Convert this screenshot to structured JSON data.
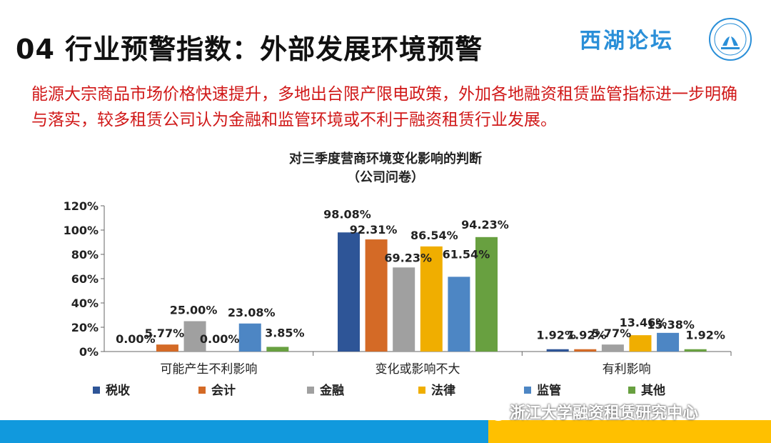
{
  "slide": {
    "title": "04 行业预警指数：外部发展环境预警",
    "brand": "西湖论坛",
    "intro": "能源大宗商品市场价格快速提升，多地出台限产限电政策，外加各地融资租赁监管指标进一步明确与落实，较多租赁公司认为金融和监管环境或不利于融资租赁行业发展。",
    "watermark": "浙江大学融资租赁研究中心"
  },
  "colors": {
    "intro_text": "#d01818",
    "brand": "#2a8fd8",
    "footer_blue": "#1199dd",
    "footer_yellow": "#ffc000"
  },
  "chart_data": {
    "type": "bar",
    "title": "对三季度营商环境变化影响的判断",
    "subtitle": "（公司问卷）",
    "categories": [
      "可能产生不利影响",
      "变化或影响不大",
      "有利影响"
    ],
    "series": [
      {
        "name": "税收",
        "color": "#2e5597",
        "values": [
          0.0,
          98.08,
          1.92
        ],
        "labels": [
          "0.00%",
          "98.08%",
          "1.92%"
        ]
      },
      {
        "name": "会计",
        "color": "#d46a26",
        "values": [
          5.77,
          92.31,
          1.92
        ],
        "labels": [
          "5.77%",
          "92.31%",
          "1.92%"
        ]
      },
      {
        "name": "金融",
        "color": "#a0a0a0",
        "values": [
          25.0,
          69.23,
          5.77
        ],
        "labels": [
          "25.00%",
          "69.23%",
          "5.77%"
        ]
      },
      {
        "name": "法律",
        "color": "#f0ae00",
        "values": [
          0.0,
          86.54,
          13.46
        ],
        "labels": [
          "0.00%",
          "86.54%",
          "13.46%"
        ]
      },
      {
        "name": "监管",
        "color": "#4d86c4",
        "values": [
          23.08,
          61.54,
          15.38
        ],
        "labels": [
          "23.08%",
          "61.54%",
          "15.38%"
        ]
      },
      {
        "name": "其他",
        "color": "#68a040",
        "values": [
          3.85,
          94.23,
          1.92
        ],
        "labels": [
          "3.85%",
          "94.23%",
          "1.92%"
        ]
      }
    ],
    "y_ticks": [
      "0%",
      "20%",
      "40%",
      "60%",
      "80%",
      "100%",
      "120%"
    ],
    "ylim": [
      0,
      120
    ],
    "grid": false,
    "legend_position": "bottom"
  }
}
